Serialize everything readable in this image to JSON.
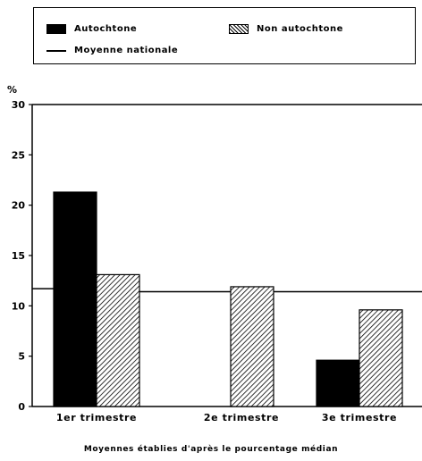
{
  "legend": {
    "solid_label": "Autochtone",
    "hatched_label": "Non autochtone",
    "line_label": "Moyenne nationale"
  },
  "footnote": "Moyennes établies d'après le pourcentage médian",
  "chart_data": {
    "type": "bar",
    "title": "",
    "xlabel": "",
    "ylabel": "%",
    "ylim": [
      0,
      30
    ],
    "yticks": [
      "0",
      "5",
      "10",
      "15",
      "20",
      "25",
      "30"
    ],
    "categories": [
      "1er trimestre",
      "2e trimestre",
      "3e trimestre"
    ],
    "series": [
      {
        "name": "Autochtone",
        "pattern": "solid",
        "values": [
          21.3,
          null,
          4.6
        ]
      },
      {
        "name": "Non autochtone",
        "pattern": "hatched",
        "values": [
          13.1,
          11.9,
          9.6
        ]
      }
    ],
    "reference_line": {
      "name": "Moyenne nationale",
      "values": [
        11.7,
        11.4,
        11.4
      ]
    },
    "legend_position": "top",
    "grid": false,
    "colors": {
      "solid": "#000000",
      "hatched": "#000000",
      "background": "#ffffff"
    }
  }
}
